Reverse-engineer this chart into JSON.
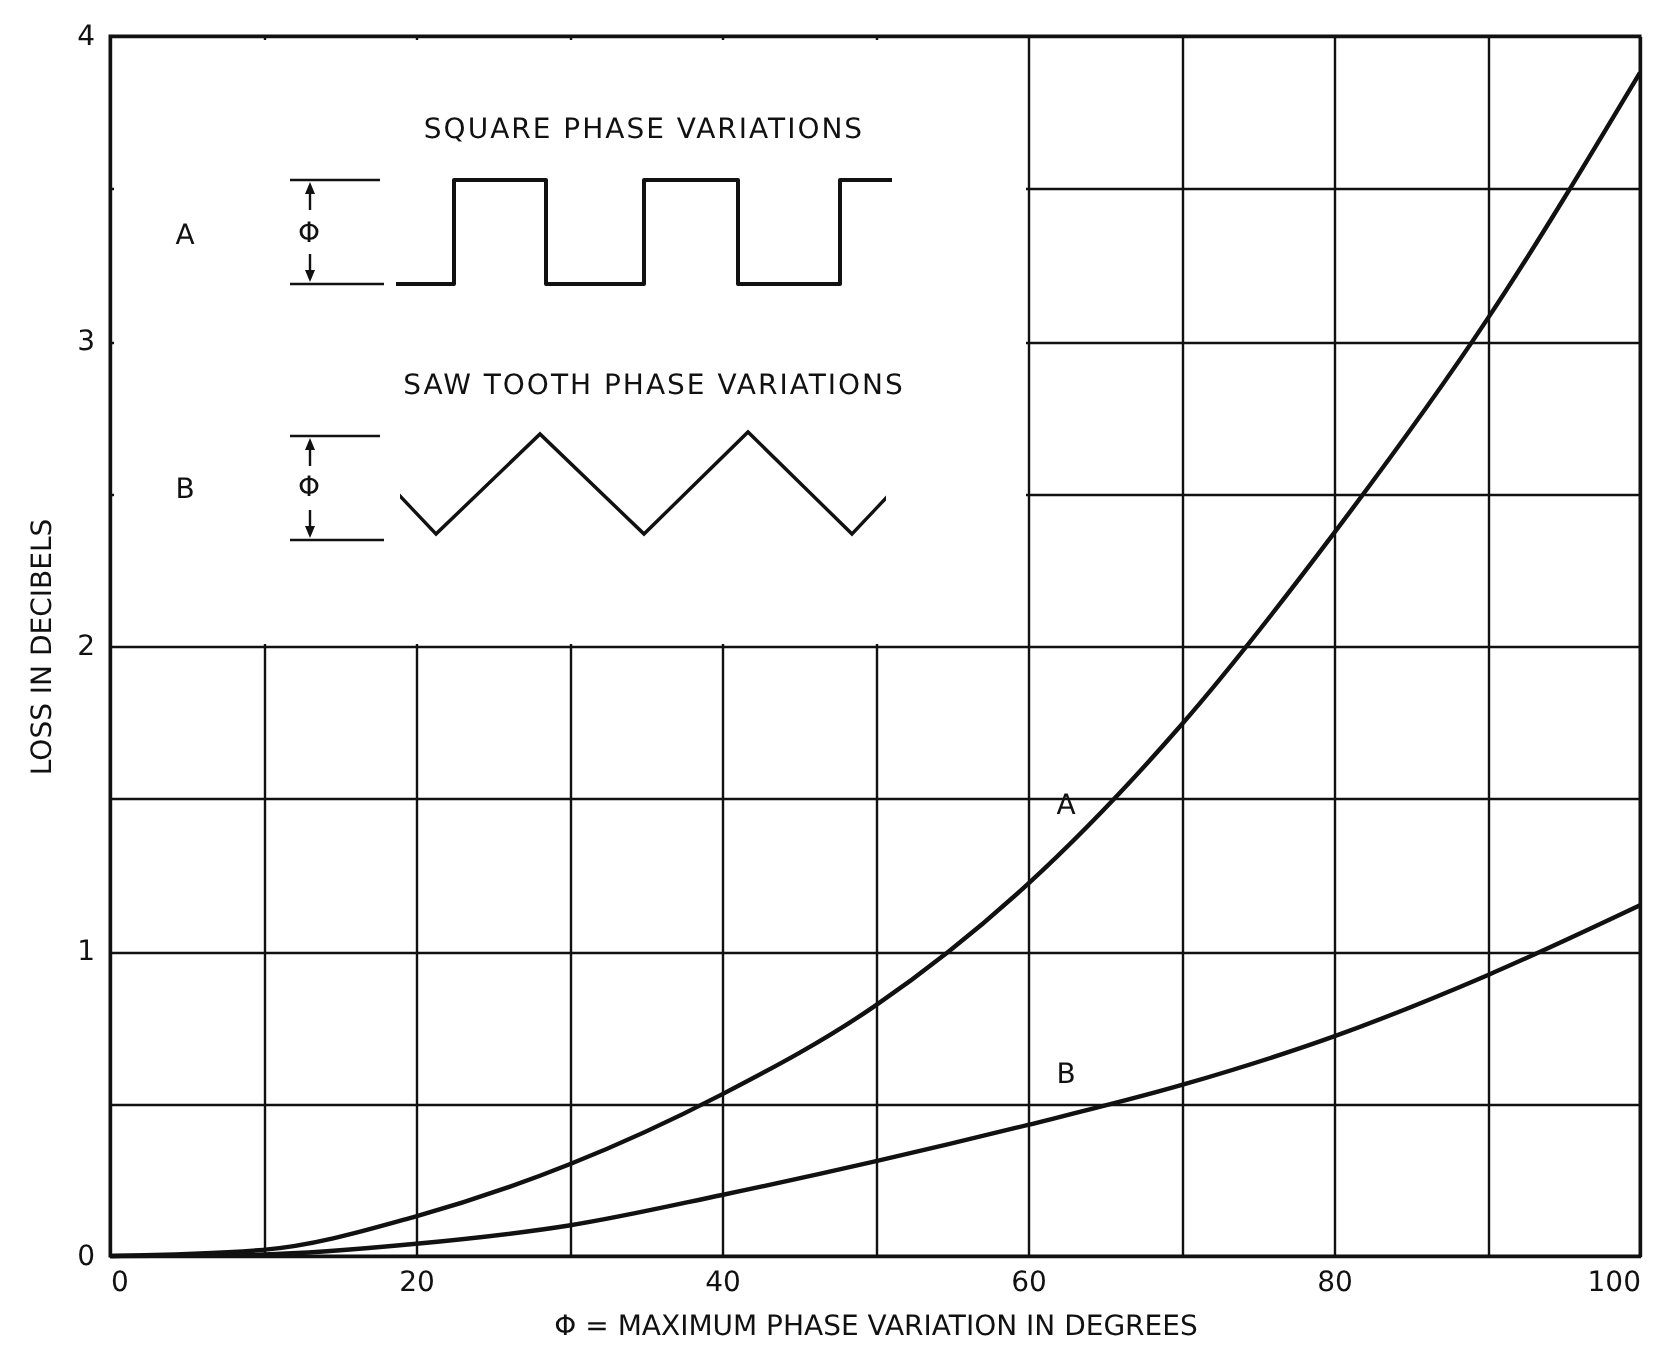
{
  "chart_data": {
    "type": "line",
    "xlabel": "Φ = MAXIMUM PHASE VARIATION IN DEGREES",
    "ylabel": "LOSS IN DECIBELS",
    "x": [
      0,
      10,
      20,
      30,
      40,
      50,
      60,
      70,
      80,
      90,
      100
    ],
    "series": [
      {
        "name": "A",
        "color": "#111111",
        "values": [
          0,
          0.02,
          0.13,
          0.3,
          0.53,
          0.82,
          1.22,
          1.74,
          2.37,
          3.07,
          3.88
        ]
      },
      {
        "name": "B",
        "color": "#111111",
        "values": [
          0,
          0.005,
          0.04,
          0.1,
          0.2,
          0.31,
          0.43,
          0.56,
          0.72,
          0.92,
          1.15
        ]
      }
    ],
    "xlim": [
      0,
      100
    ],
    "ylim": [
      0,
      4
    ],
    "xticks": [
      0,
      {
        "value": 10,
        "label": null
      },
      20,
      {
        "value": 30,
        "label": null
      },
      40,
      {
        "value": 50,
        "label": null
      },
      60,
      {
        "value": 70,
        "label": null
      },
      80,
      {
        "value": 90,
        "label": null
      },
      100
    ],
    "yticks": [
      0,
      {
        "value": 0.5,
        "label": null
      },
      1,
      {
        "value": 1.5,
        "label": null
      },
      2,
      {
        "value": 2.5,
        "label": null
      },
      3,
      {
        "value": 3.5,
        "label": null
      },
      4
    ],
    "grid": true,
    "marker": "none",
    "line_style": "solid",
    "annotations": [
      "SQUARE PHASE VARIATIONS",
      "A",
      "Φ",
      "SAW TOOTH PHASE VARIATIONS",
      "B",
      "Φ"
    ]
  }
}
